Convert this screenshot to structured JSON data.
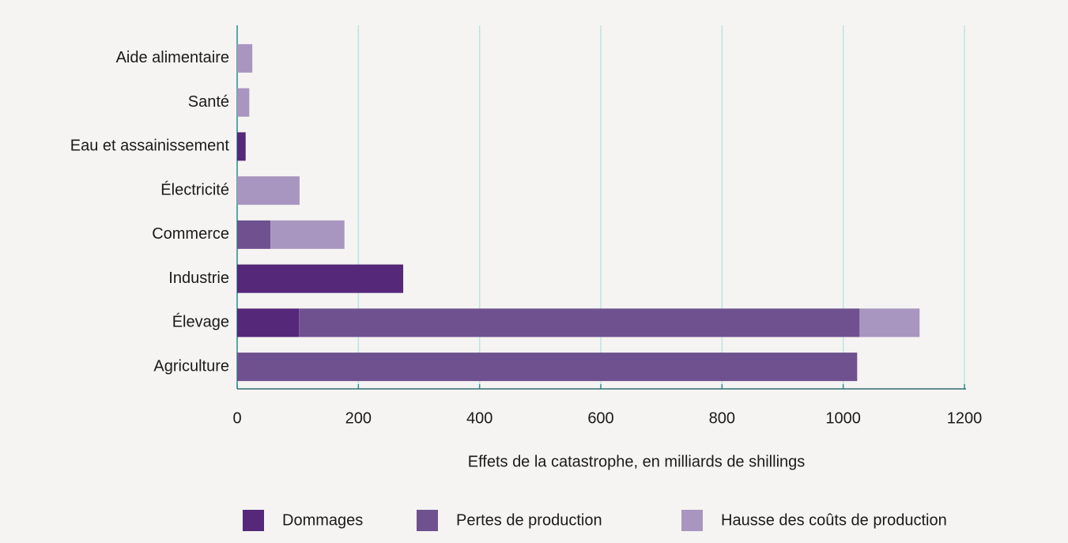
{
  "chart_data": {
    "type": "stacked_barh",
    "xlabel": "Effets de la catastrophe, en milliards de shillings",
    "categories": [
      "Aide alimentaire",
      "Santé",
      "Eau et assainissement",
      "Électricité",
      "Commerce",
      "Industrie",
      "Élevage",
      "Agriculture"
    ],
    "series": [
      {
        "name": "Dommages",
        "color": "#55287a",
        "values": [
          0,
          0,
          14,
          0,
          0,
          274,
          102,
          0
        ]
      },
      {
        "name": "Pertes de production",
        "color": "#6f5190",
        "values": [
          0,
          0,
          0,
          0,
          55,
          0,
          925,
          1023
        ]
      },
      {
        "name": "Hausse des coûts de production",
        "color": "#a896c0",
        "values": [
          25,
          20,
          0,
          103,
          122,
          0,
          99,
          0
        ]
      }
    ],
    "xlim": [
      0,
      1200
    ],
    "xticks": [
      0,
      200,
      400,
      600,
      800,
      1000,
      1200
    ],
    "grid": true,
    "legend": "bottom"
  }
}
